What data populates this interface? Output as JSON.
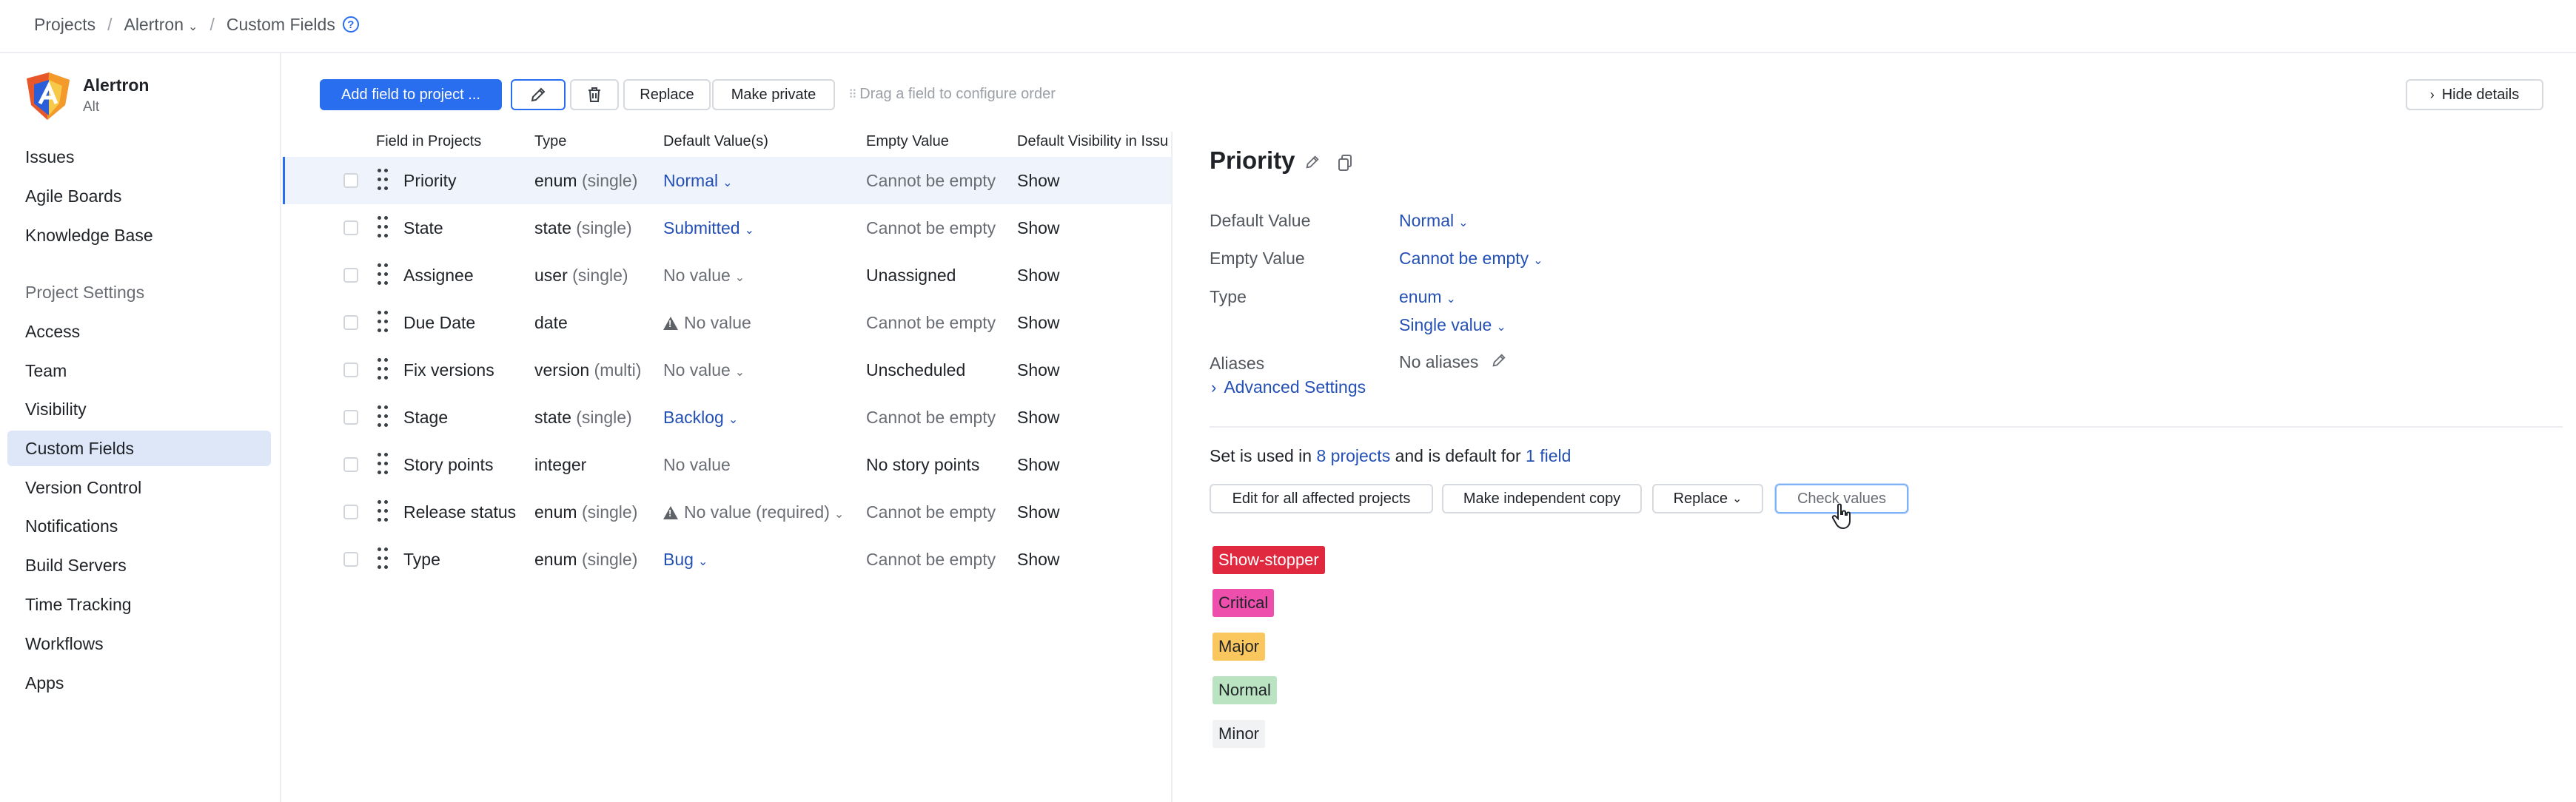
{
  "breadcrumb": {
    "projects": "Projects",
    "project": "Alertron",
    "page": "Custom Fields",
    "help": "?"
  },
  "sidebar": {
    "project_name": "Alertron",
    "project_key": "Alt",
    "items": [
      {
        "label": "Issues"
      },
      {
        "label": "Agile Boards"
      },
      {
        "label": "Knowledge Base"
      }
    ],
    "settings_title": "Project Settings",
    "settings_items": [
      {
        "label": "Access"
      },
      {
        "label": "Team"
      },
      {
        "label": "Visibility"
      },
      {
        "label": "Custom Fields"
      },
      {
        "label": "Version Control"
      },
      {
        "label": "Notifications"
      },
      {
        "label": "Build Servers"
      },
      {
        "label": "Time Tracking"
      },
      {
        "label": "Workflows"
      },
      {
        "label": "Apps"
      }
    ]
  },
  "toolbar": {
    "add_field": "Add field to project ...",
    "replace": "Replace",
    "make_private": "Make private",
    "drag_hint": "Drag a field to configure order",
    "hide_details": "Hide details"
  },
  "table": {
    "headers": {
      "field": "Field in Projects",
      "type": "Type",
      "default": "Default Value(s)",
      "empty": "Empty Value",
      "visibility": "Default Visibility in Issu"
    },
    "rows": [
      {
        "name": "Priority",
        "type": "enum",
        "type_mod": "(single)",
        "default": "Normal",
        "empty": "Cannot be empty",
        "visibility": "Show"
      },
      {
        "name": "State",
        "type": "state",
        "type_mod": "(single)",
        "default": "Submitted",
        "empty": "Cannot be empty",
        "visibility": "Show"
      },
      {
        "name": "Assignee",
        "type": "user",
        "type_mod": "(single)",
        "default": "No value",
        "empty": "Unassigned",
        "visibility": "Show"
      },
      {
        "name": "Due Date",
        "type": "date",
        "type_mod": "",
        "default": "No value",
        "empty": "Cannot be empty",
        "visibility": "Show"
      },
      {
        "name": "Fix versions",
        "type": "version",
        "type_mod": "(multi)",
        "default": "No value",
        "empty": "Unscheduled",
        "visibility": "Show"
      },
      {
        "name": "Stage",
        "type": "state",
        "type_mod": "(single)",
        "default": "Backlog",
        "empty": "Cannot be empty",
        "visibility": "Show"
      },
      {
        "name": "Story points",
        "type": "integer",
        "type_mod": "",
        "default": "No value",
        "empty": "No story points",
        "visibility": "Show"
      },
      {
        "name": "Release status",
        "type": "enum",
        "type_mod": "(single)",
        "default": "No value (required)",
        "empty": "Cannot be empty",
        "visibility": "Show"
      },
      {
        "name": "Type",
        "type": "enum",
        "type_mod": "(single)",
        "default": "Bug",
        "empty": "Cannot be empty",
        "visibility": "Show"
      }
    ]
  },
  "detail": {
    "title": "Priority",
    "default_label": "Default Value",
    "default_value": "Normal",
    "empty_label": "Empty Value",
    "empty_value": "Cannot be empty",
    "type_label": "Type",
    "type_value": "enum",
    "type_mode": "Single value",
    "aliases_label": "Aliases",
    "aliases_value": "No aliases",
    "advanced": "Advanced Settings",
    "usage_prefix": "Set is used in",
    "usage_projects": "8 projects",
    "usage_middle": "and is default for",
    "usage_fields": "1 field",
    "btn_edit_all": "Edit for all affected projects",
    "btn_independent": "Make independent copy",
    "btn_replace": "Replace",
    "btn_check": "Check values",
    "values": [
      {
        "label": "Show-stopper",
        "bg": "#e0293e",
        "fg": "#ffffff"
      },
      {
        "label": "Critical",
        "bg": "#ee4fad",
        "fg": "#1f2328"
      },
      {
        "label": "Major",
        "bg": "#f9c75e",
        "fg": "#1f2328"
      },
      {
        "label": "Normal",
        "bg": "#b9e3c1",
        "fg": "#1f2328"
      },
      {
        "label": "Minor",
        "bg": "#f1f2f4",
        "fg": "#1f2328"
      }
    ]
  },
  "colors": {
    "accent": "#2a6ef0",
    "link": "#2450b5",
    "selected_nav": "#dde7f8"
  }
}
